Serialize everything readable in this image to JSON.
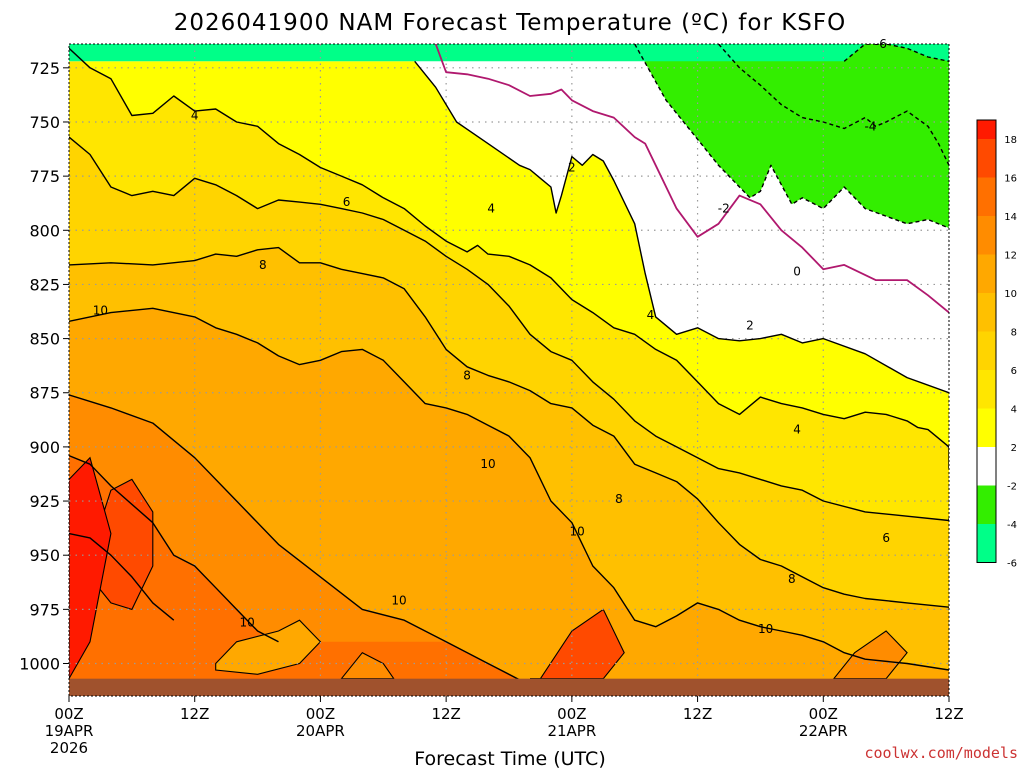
{
  "chart_data": {
    "type": "heatmap",
    "title": "2026041900 NAM Forecast Temperature (ºC) for KSFO",
    "xlabel": "Forecast Time (UTC)",
    "ylabel": "",
    "x_range_hours": [
      0,
      84
    ],
    "y_range_hPa": [
      714,
      1015
    ],
    "y_ticks": [
      725,
      750,
      775,
      800,
      825,
      850,
      875,
      900,
      925,
      950,
      975,
      1000
    ],
    "y_tick_labels": [
      "725",
      "750",
      "775",
      "800",
      "825",
      "850",
      "875",
      "900",
      "925",
      "950",
      "975",
      "1000"
    ],
    "x_ticks": [
      {
        "hour": 0,
        "label": "00Z",
        "date": "19APR",
        "year": "2026"
      },
      {
        "hour": 12,
        "label": "12Z",
        "date": "",
        "year": ""
      },
      {
        "hour": 24,
        "label": "00Z",
        "date": "20APR",
        "year": ""
      },
      {
        "hour": 36,
        "label": "12Z",
        "date": "",
        "year": ""
      },
      {
        "hour": 48,
        "label": "00Z",
        "date": "21APR",
        "year": ""
      },
      {
        "hour": 60,
        "label": "12Z",
        "date": "",
        "year": ""
      },
      {
        "hour": 72,
        "label": "00Z",
        "date": "22APR",
        "year": ""
      },
      {
        "hour": 84,
        "label": "12Z",
        "date": "",
        "year": ""
      }
    ],
    "contour_levels": [
      -6,
      -4,
      -2,
      0,
      2,
      4,
      6,
      8,
      10,
      12,
      14,
      16
    ],
    "series": [
      {
        "name": "-6",
        "pressure": [
          722,
          714,
          714,
          716,
          720,
          722
        ],
        "hours": [
          74,
          76,
          78,
          80,
          82,
          84
        ]
      },
      {
        "name": "-4",
        "pressure": [
          714,
          725,
          733,
          742,
          748,
          750,
          753,
          748,
          752,
          750,
          745,
          752,
          760,
          770
        ],
        "hours": [
          62,
          64,
          66,
          68,
          70,
          72,
          74,
          76,
          77,
          78,
          80,
          82,
          83,
          84
        ]
      },
      {
        "name": "-2",
        "pressure": [
          714,
          740,
          758,
          770,
          785,
          782,
          770,
          788,
          785,
          790,
          780,
          790,
          797,
          795,
          799
        ],
        "hours": [
          54,
          57,
          60,
          62,
          65,
          66,
          67,
          69,
          70,
          72,
          74,
          76,
          80,
          82,
          84
        ]
      },
      {
        "name": "0",
        "pressure": [
          714,
          727,
          728,
          730,
          733,
          738,
          737,
          735,
          740,
          745,
          748,
          757,
          760,
          770,
          790,
          803,
          797,
          784,
          788,
          800,
          808,
          818,
          816,
          823,
          823,
          830,
          838
        ],
        "hours": [
          35,
          36,
          38,
          40,
          42,
          44,
          46,
          47,
          48,
          50,
          52,
          54,
          55,
          56,
          58,
          60,
          62,
          64,
          66,
          68,
          70,
          72,
          74,
          77,
          80,
          82,
          84
        ]
      },
      {
        "name": "2",
        "pressure": [
          722,
          734,
          750,
          760,
          770,
          772,
          776,
          780,
          792,
          784,
          766,
          770,
          765,
          768,
          777,
          797,
          820,
          840,
          848,
          845,
          850,
          851,
          850,
          848,
          852,
          850,
          857,
          868,
          875
        ],
        "hours": [
          33,
          35,
          37,
          40,
          43,
          44,
          45,
          46,
          46.5,
          47,
          48,
          49,
          50,
          51,
          52,
          54,
          55,
          56,
          58,
          60,
          62,
          64,
          66,
          68,
          70,
          72,
          76,
          80,
          84
        ]
      },
      {
        "name": "4",
        "pressure": [
          716,
          725,
          730,
          747,
          746,
          738,
          745,
          744,
          750,
          752,
          760,
          765,
          771,
          775,
          779,
          785,
          790,
          798,
          805,
          810,
          807,
          811,
          812,
          816,
          822,
          832,
          838,
          845,
          848,
          855,
          860,
          870,
          880,
          885,
          877,
          880,
          882,
          885,
          887,
          884,
          885,
          888,
          891,
          892,
          900,
          910
        ],
        "hours": [
          0,
          2,
          4,
          6,
          8,
          10,
          12,
          14,
          16,
          18,
          20,
          22,
          24,
          26,
          28,
          30,
          32,
          34,
          36,
          38,
          39,
          40,
          42,
          44,
          46,
          48,
          50,
          52,
          54,
          56,
          58,
          60,
          62,
          64,
          66,
          68,
          70,
          72,
          74,
          76,
          78,
          80,
          81,
          82,
          84,
          84
        ]
      },
      {
        "name": "6",
        "pressure": [
          757,
          765,
          780,
          784,
          782,
          784,
          776,
          779,
          784,
          790,
          786,
          787,
          788,
          790,
          792,
          795,
          800,
          805,
          812,
          818,
          825,
          835,
          848,
          856,
          860,
          870,
          878,
          888,
          895,
          900,
          905,
          910,
          912,
          915,
          918,
          920,
          925,
          930,
          932,
          934,
          933
        ],
        "hours": [
          0,
          2,
          4,
          6,
          8,
          10,
          12,
          14,
          16,
          18,
          20,
          22,
          24,
          26,
          28,
          30,
          32,
          34,
          36,
          38,
          40,
          42,
          44,
          46,
          48,
          50,
          52,
          54,
          56,
          58,
          60,
          62,
          64,
          66,
          68,
          70,
          72,
          76,
          80,
          84,
          84
        ]
      },
      {
        "name": "8",
        "pressure": [
          816,
          815,
          816,
          814,
          811,
          812,
          809,
          808,
          815,
          815,
          818,
          820,
          822,
          827,
          840,
          855,
          863,
          867,
          870,
          874,
          880,
          882,
          890,
          895,
          908,
          912,
          916,
          924,
          935,
          945,
          952,
          955,
          960,
          965,
          968,
          970,
          972,
          974
        ],
        "hours": [
          0,
          4,
          8,
          12,
          14,
          16,
          18,
          20,
          22,
          24,
          26,
          28,
          30,
          32,
          34,
          36,
          38,
          40,
          42,
          44,
          46,
          48,
          50,
          52,
          54,
          56,
          58,
          60,
          62,
          64,
          66,
          68,
          70,
          72,
          74,
          76,
          80,
          84
        ]
      },
      {
        "name": "10",
        "pressure": [
          842,
          838,
          836,
          840,
          845,
          848,
          852,
          858,
          862,
          860,
          856,
          855,
          860,
          870,
          880,
          882,
          885,
          890,
          895,
          905,
          925,
          935,
          955,
          965,
          980,
          983,
          978,
          972,
          975,
          980,
          983,
          985,
          987,
          990,
          995,
          998,
          1000,
          1003
        ],
        "hours": [
          0,
          4,
          8,
          12,
          14,
          16,
          18,
          20,
          22,
          24,
          26,
          28,
          30,
          32,
          34,
          36,
          38,
          40,
          42,
          44,
          46,
          48,
          50,
          52,
          54,
          56,
          58,
          60,
          62,
          64,
          66,
          68,
          70,
          72,
          74,
          76,
          80,
          84
        ]
      },
      {
        "name": "12",
        "pressure": [
          876,
          882,
          889,
          905,
          925,
          945,
          960,
          975,
          980,
          990,
          1000,
          1010
        ],
        "hours": [
          0,
          4,
          8,
          12,
          16,
          20,
          24,
          28,
          32,
          36,
          40,
          44
        ]
      },
      {
        "name": "14",
        "pressure": [
          904,
          908,
          918,
          935,
          950,
          955,
          965,
          975,
          985,
          990
        ],
        "hours": [
          0,
          2,
          4,
          8,
          10,
          12,
          14,
          16,
          18,
          20
        ]
      },
      {
        "name": "16",
        "pressure": [
          940,
          942,
          950,
          960,
          972,
          980
        ],
        "hours": [
          0,
          2,
          4,
          6,
          8,
          10
        ]
      }
    ],
    "contour_labels": [
      {
        "text": "4",
        "hour": 12.0,
        "pressure": 747
      },
      {
        "text": "6",
        "hour": 26.5,
        "pressure": 787
      },
      {
        "text": "8",
        "hour": 18.5,
        "pressure": 816
      },
      {
        "text": "10",
        "hour": 3.0,
        "pressure": 837
      },
      {
        "text": "2",
        "hour": 48.0,
        "pressure": 771
      },
      {
        "text": "4",
        "hour": 40.3,
        "pressure": 790
      },
      {
        "text": "8",
        "hour": 38.0,
        "pressure": 867
      },
      {
        "text": "10",
        "hour": 40.0,
        "pressure": 908
      },
      {
        "text": "8",
        "hour": 52.5,
        "pressure": 924
      },
      {
        "text": "10",
        "hour": 48.5,
        "pressure": 939
      },
      {
        "text": "10",
        "hour": 31.5,
        "pressure": 971
      },
      {
        "text": "10",
        "hour": 17.0,
        "pressure": 981
      },
      {
        "text": "4",
        "hour": 55.5,
        "pressure": 839
      },
      {
        "text": "2",
        "hour": 65.0,
        "pressure": 844
      },
      {
        "text": "4",
        "hour": 69.5,
        "pressure": 892
      },
      {
        "text": "0",
        "hour": 69.5,
        "pressure": 819
      },
      {
        "text": "-2",
        "hour": 62.5,
        "pressure": 790
      },
      {
        "text": "-4",
        "hour": 76.5,
        "pressure": 752
      },
      {
        "text": "-6",
        "hour": 77.5,
        "pressure": 714
      },
      {
        "text": "6",
        "hour": 78.0,
        "pressure": 942
      },
      {
        "text": "8",
        "hour": 69.0,
        "pressure": 961
      },
      {
        "text": "10",
        "hour": 66.5,
        "pressure": 984
      }
    ],
    "colorbar": {
      "labels": [
        "18",
        "16",
        "14",
        "12",
        "10",
        "8",
        "6",
        "4",
        "2",
        "-2",
        "-4",
        "-6"
      ],
      "colors": [
        "#ff1a00",
        "#ff4a00",
        "#ff7000",
        "#ff8c00",
        "#ffa800",
        "#ffc000",
        "#ffd400",
        "#ffe600",
        "#ffff00",
        "#ffffff",
        "#33ee00",
        "#00ff88"
      ]
    }
  },
  "credit": "coolwx.com/models",
  "colors": {
    "ground": "#a0522d",
    "freezing_line": "#b0186e",
    "credit": "#cc3333",
    "grid": "#9a9a9a"
  }
}
